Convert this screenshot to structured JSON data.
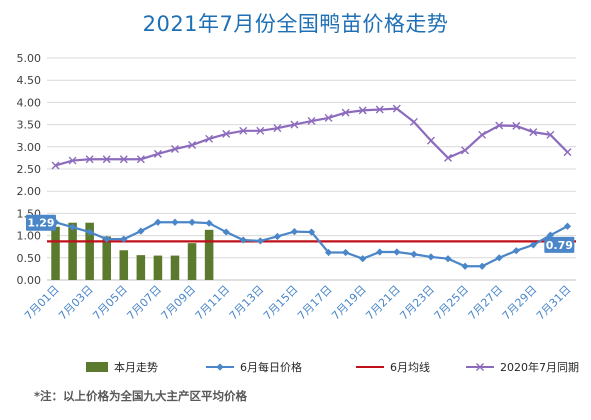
{
  "chart_data": {
    "title": "2021年7月份全国鸭苗价格走势",
    "note": "*注：以上价格为全国九大主产区平均价格",
    "xlabels": [
      "7月01日",
      "7月03日",
      "7月05日",
      "7月07日",
      "7月09日",
      "7月11日",
      "7月13日",
      "7月15日",
      "7月17日",
      "7月19日",
      "7月21日",
      "7月23日",
      "7月25日",
      "7月27日",
      "7月29日",
      "7月31日"
    ],
    "yticks": [
      "0.00",
      "0.50",
      "1.00",
      "1.50",
      "2.00",
      "2.50",
      "3.00",
      "3.50",
      "4.00",
      "4.50",
      "5.00"
    ],
    "ylim": [
      0,
      5
    ],
    "days": 31,
    "grid": true,
    "legend_position": "bottom",
    "series": [
      {
        "name": "本月走势",
        "type": "bar",
        "color": "#5b7a2e",
        "values": [
          1.2,
          1.29,
          1.29,
          0.98,
          0.67,
          0.56,
          0.55,
          0.55,
          0.83,
          1.13
        ]
      },
      {
        "name": "6月每日价格",
        "type": "line",
        "color": "#4a86c8",
        "values": [
          1.3,
          1.19,
          1.08,
          0.92,
          0.92,
          1.1,
          1.3,
          1.3,
          1.3,
          1.28,
          1.08,
          0.9,
          0.88,
          0.98,
          1.09,
          1.08,
          0.62,
          0.62,
          0.48,
          0.63,
          0.63,
          0.58,
          0.52,
          0.48,
          0.31,
          0.31,
          0.5,
          0.66,
          0.79,
          1.01,
          1.21
        ]
      },
      {
        "name": "6月均线",
        "type": "hline",
        "color": "#c0101a",
        "value": 0.87
      },
      {
        "name": "2020年7月同期",
        "type": "line",
        "color": "#8c6bbd",
        "values": [
          2.58,
          2.69,
          2.72,
          2.72,
          2.72,
          2.72,
          2.84,
          2.95,
          3.04,
          3.18,
          3.29,
          3.36,
          3.36,
          3.42,
          3.5,
          3.58,
          3.65,
          3.77,
          3.82,
          3.84,
          3.86,
          3.56,
          3.14,
          2.75,
          2.92,
          3.27,
          3.48,
          3.47,
          3.33,
          3.27,
          2.88
        ]
      }
    ],
    "annotations": [
      {
        "text": "1.29",
        "day": 1,
        "value": 1.29,
        "side": "left"
      },
      {
        "text": "0.79",
        "day": 29,
        "value": 0.79,
        "side": "right"
      }
    ]
  }
}
